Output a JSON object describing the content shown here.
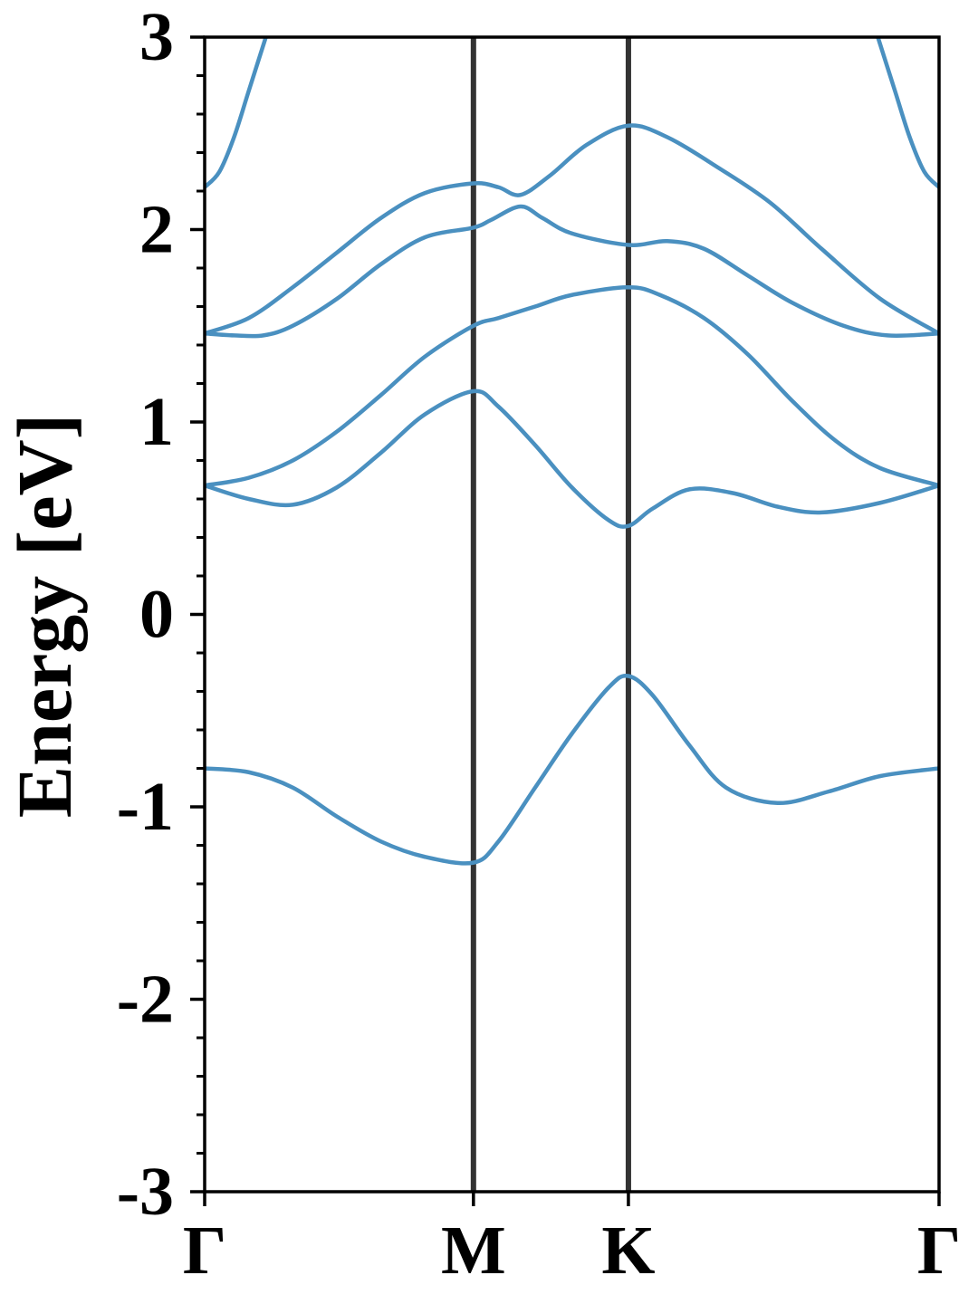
{
  "chart_data": {
    "type": "line",
    "title": "",
    "ylabel": "Energy [eV]",
    "xlabel": "",
    "ylim": [
      -3,
      3
    ],
    "yticks": [
      {
        "value": 3,
        "label": "3"
      },
      {
        "value": 2,
        "label": "2"
      },
      {
        "value": 1,
        "label": "1"
      },
      {
        "value": 0,
        "label": "0"
      },
      {
        "value": -1,
        "label": "-1"
      },
      {
        "value": -2,
        "label": "-2"
      },
      {
        "value": -3,
        "label": "-3"
      }
    ],
    "yminor_step": 0.2,
    "x_range": [
      0,
      1
    ],
    "kpoints": [
      {
        "label": "Γ",
        "position": 0.0
      },
      {
        "label": "M",
        "position": 0.366
      },
      {
        "label": "K",
        "position": 0.577
      },
      {
        "label": "Γ",
        "position": 1.0
      }
    ],
    "grid": false,
    "colors": {
      "band": "#4a90c0",
      "kline": "#333333",
      "axis": "#000000"
    },
    "series": [
      {
        "values": [
          [
            0.0,
            -0.8
          ],
          [
            0.06,
            -0.82
          ],
          [
            0.12,
            -0.9
          ],
          [
            0.18,
            -1.05
          ],
          [
            0.24,
            -1.18
          ],
          [
            0.3,
            -1.26
          ],
          [
            0.366,
            -1.29
          ],
          [
            0.4,
            -1.18
          ],
          [
            0.45,
            -0.9
          ],
          [
            0.5,
            -0.62
          ],
          [
            0.55,
            -0.38
          ],
          [
            0.577,
            -0.32
          ],
          [
            0.61,
            -0.42
          ],
          [
            0.66,
            -0.68
          ],
          [
            0.71,
            -0.9
          ],
          [
            0.78,
            -0.98
          ],
          [
            0.85,
            -0.92
          ],
          [
            0.92,
            -0.84
          ],
          [
            1.0,
            -0.8
          ]
        ]
      },
      {
        "values": [
          [
            0.0,
            0.67
          ],
          [
            0.06,
            0.6
          ],
          [
            0.12,
            0.57
          ],
          [
            0.18,
            0.66
          ],
          [
            0.24,
            0.84
          ],
          [
            0.3,
            1.04
          ],
          [
            0.366,
            1.16
          ],
          [
            0.4,
            1.08
          ],
          [
            0.45,
            0.88
          ],
          [
            0.5,
            0.66
          ],
          [
            0.55,
            0.49
          ],
          [
            0.577,
            0.46
          ],
          [
            0.61,
            0.55
          ],
          [
            0.66,
            0.65
          ],
          [
            0.72,
            0.63
          ],
          [
            0.78,
            0.56
          ],
          [
            0.84,
            0.53
          ],
          [
            0.92,
            0.58
          ],
          [
            1.0,
            0.67
          ]
        ]
      },
      {
        "values": [
          [
            0.0,
            0.67
          ],
          [
            0.06,
            0.71
          ],
          [
            0.12,
            0.8
          ],
          [
            0.18,
            0.95
          ],
          [
            0.24,
            1.14
          ],
          [
            0.3,
            1.34
          ],
          [
            0.366,
            1.5
          ],
          [
            0.4,
            1.54
          ],
          [
            0.45,
            1.6
          ],
          [
            0.5,
            1.66
          ],
          [
            0.577,
            1.7
          ],
          [
            0.62,
            1.66
          ],
          [
            0.68,
            1.54
          ],
          [
            0.74,
            1.35
          ],
          [
            0.8,
            1.11
          ],
          [
            0.86,
            0.9
          ],
          [
            0.92,
            0.76
          ],
          [
            1.0,
            0.67
          ]
        ]
      },
      {
        "values": [
          [
            0.0,
            1.46
          ],
          [
            0.04,
            1.45
          ],
          [
            0.08,
            1.45
          ],
          [
            0.12,
            1.5
          ],
          [
            0.18,
            1.64
          ],
          [
            0.24,
            1.82
          ],
          [
            0.3,
            1.96
          ],
          [
            0.366,
            2.01
          ],
          [
            0.39,
            2.05
          ],
          [
            0.43,
            2.12
          ],
          [
            0.46,
            2.06
          ],
          [
            0.5,
            1.98
          ],
          [
            0.577,
            1.92
          ],
          [
            0.63,
            1.94
          ],
          [
            0.68,
            1.9
          ],
          [
            0.74,
            1.76
          ],
          [
            0.8,
            1.62
          ],
          [
            0.87,
            1.5
          ],
          [
            0.93,
            1.45
          ],
          [
            1.0,
            1.46
          ]
        ]
      },
      {
        "values": [
          [
            0.0,
            1.46
          ],
          [
            0.06,
            1.54
          ],
          [
            0.12,
            1.7
          ],
          [
            0.18,
            1.88
          ],
          [
            0.24,
            2.06
          ],
          [
            0.3,
            2.19
          ],
          [
            0.366,
            2.24
          ],
          [
            0.4,
            2.22
          ],
          [
            0.43,
            2.18
          ],
          [
            0.47,
            2.28
          ],
          [
            0.52,
            2.44
          ],
          [
            0.577,
            2.54
          ],
          [
            0.63,
            2.48
          ],
          [
            0.7,
            2.32
          ],
          [
            0.77,
            2.14
          ],
          [
            0.84,
            1.9
          ],
          [
            0.92,
            1.64
          ],
          [
            1.0,
            1.46
          ]
        ]
      },
      {
        "values": [
          [
            0.0,
            2.22
          ],
          [
            0.02,
            2.3
          ],
          [
            0.04,
            2.48
          ],
          [
            0.06,
            2.72
          ],
          [
            0.085,
            3.02
          ]
        ]
      },
      {
        "values": [
          [
            0.915,
            3.02
          ],
          [
            0.94,
            2.72
          ],
          [
            0.96,
            2.48
          ],
          [
            0.98,
            2.3
          ],
          [
            1.0,
            2.22
          ]
        ]
      }
    ]
  }
}
